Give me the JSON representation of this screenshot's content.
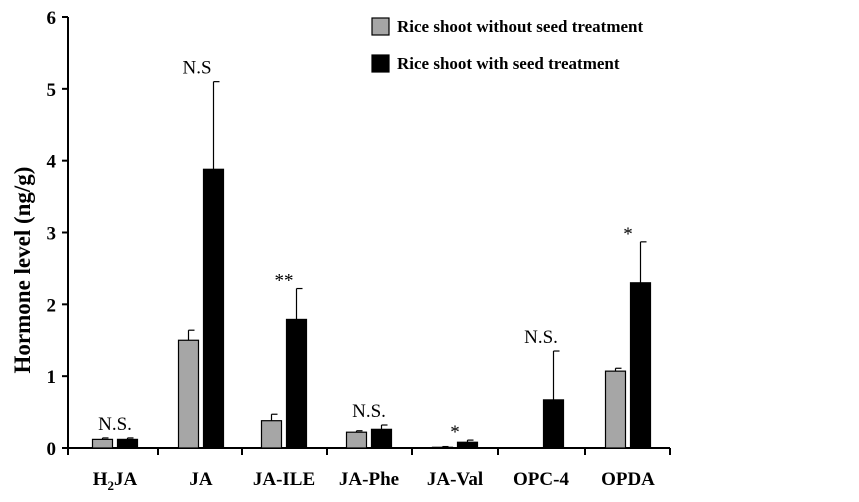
{
  "chart_data": {
    "type": "bar",
    "ylabel": "Hormone level (ng/g)",
    "xlabel": "",
    "ylim": [
      0,
      6
    ],
    "yticks": [
      0,
      1,
      2,
      3,
      4,
      5,
      6
    ],
    "grid": false,
    "legend_position": "top-right",
    "categories": [
      {
        "main": "H",
        "sub": "2",
        "rest": "JA"
      },
      {
        "main": "JA",
        "sub": "",
        "rest": ""
      },
      {
        "main": "JA-ILE",
        "sub": "",
        "rest": ""
      },
      {
        "main": "JA-Phe",
        "sub": "",
        "rest": ""
      },
      {
        "main": "JA-Val",
        "sub": "",
        "rest": ""
      },
      {
        "main": "OPC-4",
        "sub": "",
        "rest": ""
      },
      {
        "main": "OPDA",
        "sub": "",
        "rest": ""
      }
    ],
    "series": [
      {
        "name": "Rice shoot without seed treatment",
        "color": "#a6a6a6",
        "values": [
          0.12,
          1.5,
          0.38,
          0.22,
          0.01,
          0.0,
          1.07
        ],
        "errors": [
          0.02,
          0.14,
          0.09,
          0.02,
          0.01,
          0.0,
          0.04
        ]
      },
      {
        "name": "Rice shoot with seed treatment",
        "color": "#000000",
        "values": [
          0.12,
          3.88,
          1.79,
          0.26,
          0.08,
          0.67,
          2.3
        ],
        "errors": [
          0.02,
          1.22,
          0.43,
          0.06,
          0.03,
          0.68,
          0.57
        ]
      }
    ],
    "annotations": [
      "N.S.",
      "N.S",
      "**",
      "N.S.",
      "*",
      "N.S.",
      "*"
    ]
  }
}
